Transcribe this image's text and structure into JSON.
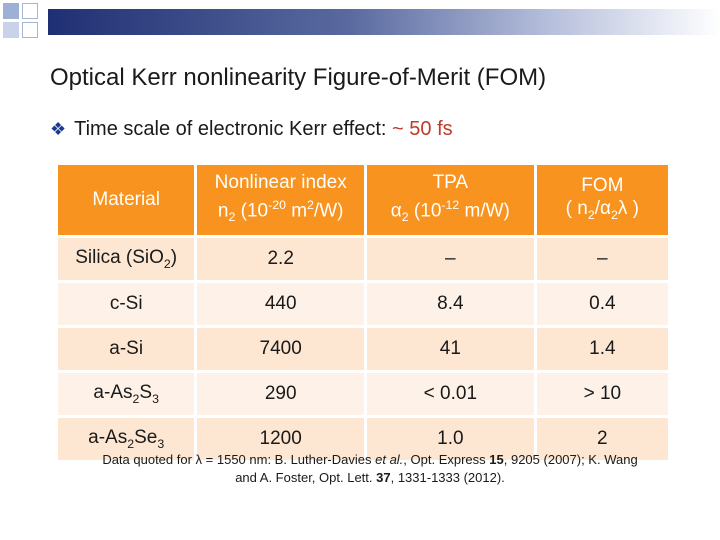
{
  "title": "Optical Kerr nonlinearity Figure-of-Merit (FOM)",
  "bullet": {
    "icon": "diamond-bullet-icon",
    "text": "Time scale of electronic Kerr effect:",
    "value": "~ 50 fs"
  },
  "table": {
    "headers": {
      "material": "Material",
      "index_line1": "Nonlinear index",
      "index_sym": "n",
      "index_sub": "2",
      "index_unit_pre": " (10",
      "index_exp": "-20",
      "index_unit_post": " m",
      "index_unit_exp": "2",
      "index_unit_tail": "/W)",
      "tpa_line1": "TPA",
      "tpa_sym": "α",
      "tpa_sub": "2",
      "tpa_unit_pre": " (10",
      "tpa_exp": "-12",
      "tpa_unit_post": " m/W)",
      "fom_line1": "FOM",
      "fom_line2_open": "( n",
      "fom_sub1": "2",
      "fom_slash": "/α",
      "fom_sub2": "2",
      "fom_lambda": "λ )"
    },
    "rows": [
      {
        "m_base": "Silica (SiO",
        "m_sub": "2",
        "m_tail": ")",
        "n2": "2.2",
        "tpa": "–",
        "fom": "–"
      },
      {
        "m_base": "c-Si",
        "n2": "440",
        "tpa": "8.4",
        "fom": "0.4"
      },
      {
        "m_base": "a-Si",
        "n2": "7400",
        "tpa": "41",
        "fom": "1.4"
      },
      {
        "m_base": "a-As",
        "m_sub": "2",
        "m_mid": "S",
        "m_sub2": "3",
        "n2": "290",
        "tpa": "< 0.01",
        "fom": "> 10"
      },
      {
        "m_base": "a-As",
        "m_sub": "2",
        "m_mid": "Se",
        "m_sub2": "3",
        "n2": "1200",
        "tpa": "1.0",
        "fom": "2"
      }
    ]
  },
  "citation": {
    "p1": "Data quoted for ",
    "lambda": "λ",
    "p2": " = 1550 nm: B. Luther-Davies ",
    "etal": "et al.",
    "p3": ", Opt. Express ",
    "vol1": "15",
    "p4": ", 9205 (2007); K. Wang and A. Foster, Opt. Lett. ",
    "vol2": "37",
    "p5": ", 1331-1333 (2012)."
  },
  "colors": {
    "header_bg": "#f7931e",
    "row_bg": "#fde6d2",
    "accent_text": "#c0392b",
    "banner": "#1f2f73"
  }
}
